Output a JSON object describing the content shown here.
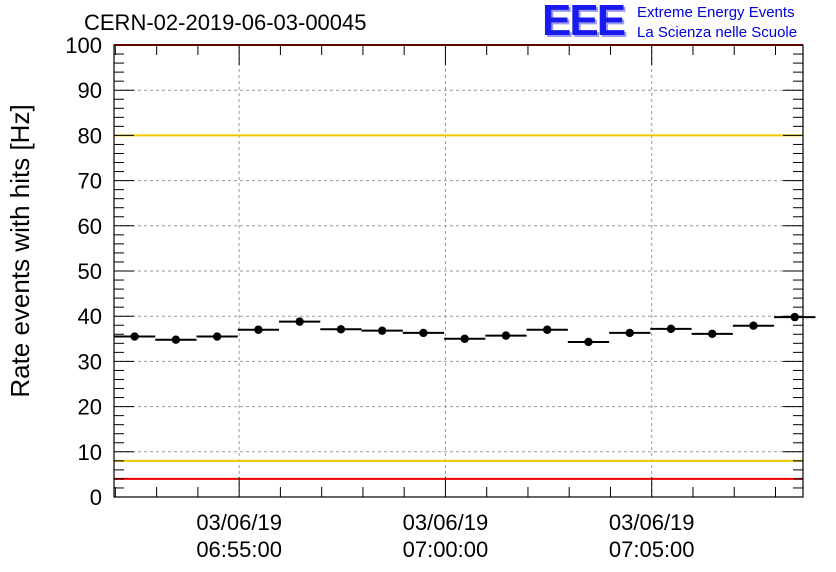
{
  "run_title": "CERN-02-2019-06-03-00045",
  "logo": {
    "mark": "EEE",
    "line1": "Extreme Energy Events",
    "line2": "La Scienza nelle Scuole"
  },
  "colors": {
    "logo": "#1a1aee",
    "red_limit": "#ee0000",
    "yellow_limit": "#f0c800",
    "points": "#000000",
    "grid": "#9a9a9a"
  },
  "chart_data": {
    "type": "scatter",
    "ylabel": "Rate events with hits [Hz]",
    "ylim": [
      0,
      100
    ],
    "yticks": [
      0,
      10,
      20,
      30,
      40,
      50,
      60,
      70,
      80,
      90,
      100
    ],
    "xlim": [
      "2019-06-03 06:51:58",
      "2019-06-03 07:08:40"
    ],
    "xticks": [
      {
        "time": "2019-06-03 06:55:00",
        "date_label": "03/06/19",
        "time_label": "06:55:00"
      },
      {
        "time": "2019-06-03 07:00:00",
        "date_label": "03/06/19",
        "time_label": "07:00:00"
      },
      {
        "time": "2019-06-03 07:05:00",
        "date_label": "03/06/19",
        "time_label": "07:05:00"
      }
    ],
    "grid": true,
    "x_error_bars": true,
    "reference_lines": [
      {
        "y": 100,
        "color": "red"
      },
      {
        "y": 80,
        "color": "yellow"
      },
      {
        "y": 8,
        "color": "yellow"
      },
      {
        "y": 4,
        "color": "red"
      }
    ],
    "points": [
      {
        "x": "2019-06-03 06:52:28",
        "y": 35.5
      },
      {
        "x": "2019-06-03 06:53:28",
        "y": 34.8
      },
      {
        "x": "2019-06-03 06:54:28",
        "y": 35.5
      },
      {
        "x": "2019-06-03 06:55:28",
        "y": 37.0
      },
      {
        "x": "2019-06-03 06:56:28",
        "y": 38.8
      },
      {
        "x": "2019-06-03 06:57:28",
        "y": 37.1
      },
      {
        "x": "2019-06-03 06:58:28",
        "y": 36.8
      },
      {
        "x": "2019-06-03 06:59:28",
        "y": 36.3
      },
      {
        "x": "2019-06-03 07:00:28",
        "y": 35.0
      },
      {
        "x": "2019-06-03 07:01:28",
        "y": 35.7
      },
      {
        "x": "2019-06-03 07:02:28",
        "y": 37.0
      },
      {
        "x": "2019-06-03 07:03:28",
        "y": 34.3
      },
      {
        "x": "2019-06-03 07:04:28",
        "y": 36.3
      },
      {
        "x": "2019-06-03 07:05:28",
        "y": 37.2
      },
      {
        "x": "2019-06-03 07:06:28",
        "y": 36.1
      },
      {
        "x": "2019-06-03 07:07:28",
        "y": 37.9
      },
      {
        "x": "2019-06-03 07:08:28",
        "y": 39.8
      }
    ]
  }
}
